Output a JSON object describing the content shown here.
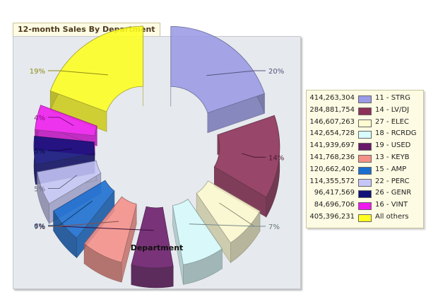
{
  "window": {
    "title": "12-month Sales By Department"
  },
  "chart_data": {
    "type": "pie",
    "title": "12-month Sales By Department",
    "xlabel": "Department",
    "legend_position": "right",
    "series": [
      {
        "label": "11 - STRG",
        "value": 414263304,
        "value_label": "414,263,304",
        "percent_label": "20%",
        "color": "#9a9ae6"
      },
      {
        "label": "14 - LV/DJ",
        "value": 284881754,
        "value_label": "284,881,754",
        "percent_label": "14%",
        "color": "#8e3057"
      },
      {
        "label": "27 - ELEC",
        "value": 146607263,
        "value_label": "146,607,263",
        "percent_label": "7%",
        "color": "#fdfbd0"
      },
      {
        "label": "18 - RCRDG",
        "value": 142654728,
        "value_label": "142,654,728",
        "percent_label": "7%",
        "color": "#d8fbfb"
      },
      {
        "label": "19 - USED",
        "value": 141939697,
        "value_label": "141,939,697",
        "percent_label": "7%",
        "color": "#6a1a6a"
      },
      {
        "label": "13 - KEYB",
        "value": 141768236,
        "value_label": "141,768,236",
        "percent_label": "7%",
        "color": "#f59088"
      },
      {
        "label": "15 - AMP",
        "value": 120662402,
        "value_label": "120,662,402",
        "percent_label": "6%",
        "color": "#1a6ed0"
      },
      {
        "label": "22 - PERC",
        "value": 114355572,
        "value_label": "114,355,572",
        "percent_label": "5%",
        "color": "#c6c6f6"
      },
      {
        "label": "26 - GENR",
        "value": 96417569,
        "value_label": "96,417,569",
        "percent_label": "5%",
        "color": "#10107a"
      },
      {
        "label": "16 - VINT",
        "value": 84696706,
        "value_label": "84,696,706",
        "percent_label": "4%",
        "color": "#ee1aee"
      },
      {
        "label": "All others",
        "value": 405396231,
        "value_label": "405,396,231",
        "percent_label": "19%",
        "color": "#ffff20"
      }
    ]
  }
}
